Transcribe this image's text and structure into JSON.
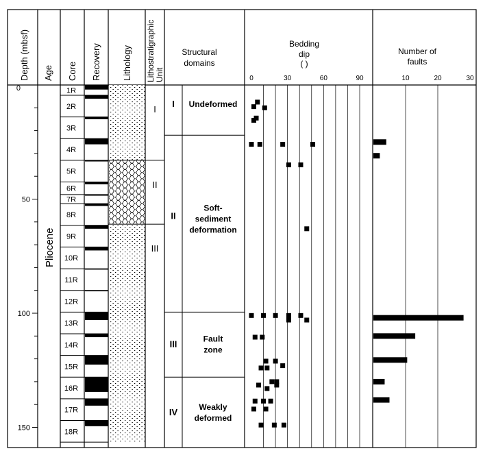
{
  "headers": {
    "depth": "Depth (mbsf)",
    "age": "Age",
    "core": "Core",
    "recovery": "Recovery",
    "lithology": "Lithology",
    "unit_line1": "Lithostratigraphic",
    "unit_line2": "Unit",
    "domains_line1": "Structural",
    "domains_line2": "domains",
    "dip_line1": "Bedding",
    "dip_line2": "dip",
    "dip_line3": "( )",
    "faults_line1": "Number of",
    "faults_line2": "faults"
  },
  "age_label": "Pliocene",
  "depth_ticks": [
    {
      "label": "0",
      "value": 0
    },
    {
      "label": "50",
      "value": 50
    },
    {
      "label": "100",
      "value": 100
    },
    {
      "label": "150",
      "value": 150
    }
  ],
  "cores": [
    {
      "label": "1R",
      "top": 0,
      "bottom": 4.5,
      "recovered": 2.0
    },
    {
      "label": "2R",
      "top": 4.5,
      "bottom": 14.0,
      "recovered": 1.5
    },
    {
      "label": "3R",
      "top": 14.0,
      "bottom": 23.5,
      "recovered": 1.0
    },
    {
      "label": "4R",
      "top": 23.5,
      "bottom": 33.0,
      "recovered": 2.5
    },
    {
      "label": "5R",
      "top": 33.0,
      "bottom": 42.5,
      "recovered": 0.5
    },
    {
      "label": "6R",
      "top": 42.5,
      "bottom": 48.0,
      "recovered": 1.0
    },
    {
      "label": "7R",
      "top": 48.0,
      "bottom": 52.0,
      "recovered": 0.5
    },
    {
      "label": "8R",
      "top": 52.0,
      "bottom": 61.5,
      "recovered": 1.0
    },
    {
      "label": "9R",
      "top": 61.5,
      "bottom": 71.0,
      "recovered": 1.5
    },
    {
      "label": "10R",
      "top": 71.0,
      "bottom": 80.5,
      "recovered": 1.5
    },
    {
      "label": "11R",
      "top": 80.5,
      "bottom": 90.0,
      "recovered": 0.4
    },
    {
      "label": "12R",
      "top": 90.0,
      "bottom": 99.5,
      "recovered": 0.4
    },
    {
      "label": "13R",
      "top": 99.5,
      "bottom": 109.0,
      "recovered": 3.5
    },
    {
      "label": "14R",
      "top": 109.0,
      "bottom": 118.5,
      "recovered": 1.5
    },
    {
      "label": "15R",
      "top": 118.5,
      "bottom": 128.0,
      "recovered": 4.0
    },
    {
      "label": "16R",
      "top": 128.0,
      "bottom": 137.5,
      "recovered": 6.5
    },
    {
      "label": "17R",
      "top": 137.5,
      "bottom": 147.0,
      "recovered": 3.0
    },
    {
      "label": "18R",
      "top": 147.0,
      "bottom": 156.5,
      "recovered": 2.5
    }
  ],
  "litho_units": [
    {
      "label": "I",
      "top": 0,
      "bottom": 33,
      "pattern": "dotted"
    },
    {
      "label": "II",
      "top": 33,
      "bottom": 61,
      "pattern": "wavy"
    },
    {
      "label": "III",
      "top": 61,
      "bottom": 156.5,
      "pattern": "dotted"
    }
  ],
  "structural_domains": [
    {
      "roman": "I",
      "lines": [
        "Undeformed"
      ],
      "top": 0,
      "bottom": 22
    },
    {
      "roman": "II",
      "lines": [
        "Soft-",
        "sediment",
        "deformation"
      ],
      "top": 22,
      "bottom": 99.5
    },
    {
      "roman": "III",
      "lines": [
        "Fault",
        "zone"
      ],
      "top": 99.5,
      "bottom": 128
    },
    {
      "roman": "IV",
      "lines": [
        "Weakly",
        "deformed"
      ],
      "top": 128,
      "bottom": 156.5
    }
  ],
  "bedding_dip": {
    "axis_ticks": [
      0,
      30,
      60,
      90
    ],
    "points": [
      {
        "depth": 7.5,
        "dip": 5
      },
      {
        "depth": 9.5,
        "dip": 2
      },
      {
        "depth": 10,
        "dip": 11
      },
      {
        "depth": 14.5,
        "dip": 4
      },
      {
        "depth": 15.5,
        "dip": 2
      },
      {
        "depth": 26,
        "dip": 0
      },
      {
        "depth": 26,
        "dip": 7
      },
      {
        "depth": 26,
        "dip": 26
      },
      {
        "depth": 26,
        "dip": 51
      },
      {
        "depth": 35,
        "dip": 31
      },
      {
        "depth": 35,
        "dip": 41
      },
      {
        "depth": 63,
        "dip": 46
      },
      {
        "depth": 101,
        "dip": 0
      },
      {
        "depth": 101,
        "dip": 10
      },
      {
        "depth": 101,
        "dip": 20
      },
      {
        "depth": 101,
        "dip": 31
      },
      {
        "depth": 101,
        "dip": 41
      },
      {
        "depth": 103,
        "dip": 31
      },
      {
        "depth": 103,
        "dip": 46
      },
      {
        "depth": 110.5,
        "dip": 3
      },
      {
        "depth": 110.5,
        "dip": 9
      },
      {
        "depth": 121,
        "dip": 12
      },
      {
        "depth": 121,
        "dip": 20
      },
      {
        "depth": 123,
        "dip": 26
      },
      {
        "depth": 124,
        "dip": 8
      },
      {
        "depth": 124,
        "dip": 13
      },
      {
        "depth": 130,
        "dip": 17
      },
      {
        "depth": 130,
        "dip": 21
      },
      {
        "depth": 131.5,
        "dip": 6
      },
      {
        "depth": 131.5,
        "dip": 21
      },
      {
        "depth": 133,
        "dip": 13
      },
      {
        "depth": 138.5,
        "dip": 3
      },
      {
        "depth": 138.5,
        "dip": 10
      },
      {
        "depth": 138.5,
        "dip": 16
      },
      {
        "depth": 142,
        "dip": 2
      },
      {
        "depth": 142,
        "dip": 12
      },
      {
        "depth": 149,
        "dip": 8
      },
      {
        "depth": 149,
        "dip": 19
      },
      {
        "depth": 149,
        "dip": 27
      }
    ]
  },
  "faults": {
    "axis_ticks": [
      10,
      20,
      30
    ],
    "bars": [
      {
        "depth": 25,
        "count": 4
      },
      {
        "depth": 31,
        "count": 2
      },
      {
        "depth": 102,
        "count": 28
      },
      {
        "depth": 110,
        "count": 13
      },
      {
        "depth": 120.5,
        "count": 10.5
      },
      {
        "depth": 130,
        "count": 3.5
      },
      {
        "depth": 138,
        "count": 5
      }
    ]
  },
  "colors": {
    "ink": "#000000",
    "paper": "#ffffff"
  }
}
